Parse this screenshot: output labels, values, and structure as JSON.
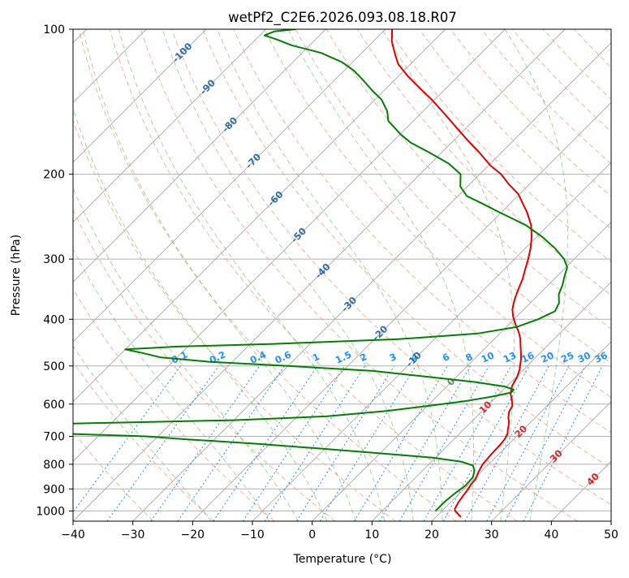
{
  "chart_data": {
    "type": "skew-t",
    "title": "wetPf2_C2E6.2026.093.08.18.R07",
    "xlabel": "Temperature (°C)",
    "ylabel": "Pressure (hPa)",
    "xlim": [
      -40,
      50
    ],
    "ylim": [
      1050,
      100
    ],
    "y_scale": "log",
    "grid": true,
    "x_ticks": [
      -40,
      -30,
      -20,
      -10,
      0,
      10,
      20,
      30,
      40,
      50
    ],
    "y_ticks": [
      100,
      200,
      300,
      400,
      500,
      600,
      700,
      800,
      900,
      1000
    ],
    "skew_angle_deg": 45,
    "series": [
      {
        "key": "temperature",
        "color": "#e00000",
        "points": [
          [
            1030,
            24.2
          ],
          [
            1010,
            22.9
          ],
          [
            1000,
            22.2
          ],
          [
            990,
            21.8
          ],
          [
            960,
            21.3
          ],
          [
            930,
            21.0
          ],
          [
            900,
            20.7
          ],
          [
            880,
            20.4
          ],
          [
            860,
            20.3
          ],
          [
            830,
            19.6
          ],
          [
            800,
            19.0
          ],
          [
            770,
            18.8
          ],
          [
            740,
            18.7
          ],
          [
            720,
            18.6
          ],
          [
            705,
            18.4
          ],
          [
            690,
            18.0
          ],
          [
            678,
            17.4
          ],
          [
            668,
            17.0
          ],
          [
            655,
            16.4
          ],
          [
            640,
            15.5
          ],
          [
            622,
            14.6
          ],
          [
            605,
            14.2
          ],
          [
            588,
            13.1
          ],
          [
            570,
            11.8
          ],
          [
            550,
            10.8
          ],
          [
            528,
            10.2
          ],
          [
            508,
            9.3
          ],
          [
            485,
            7.9
          ],
          [
            470,
            6.8
          ],
          [
            455,
            5.6
          ],
          [
            440,
            4.4
          ],
          [
            425,
            2.9
          ],
          [
            410,
            1.1
          ],
          [
            395,
            -0.6
          ],
          [
            382,
            -1.9
          ],
          [
            370,
            -2.8
          ],
          [
            358,
            -3.6
          ],
          [
            345,
            -4.4
          ],
          [
            330,
            -5.3
          ],
          [
            315,
            -6.5
          ],
          [
            300,
            -7.7
          ],
          [
            285,
            -9.1
          ],
          [
            270,
            -10.8
          ],
          [
            255,
            -12.9
          ],
          [
            240,
            -15.7
          ],
          [
            230,
            -17.9
          ],
          [
            220,
            -20.2
          ],
          [
            210,
            -23.4
          ],
          [
            200,
            -26.4
          ],
          [
            192,
            -29.6
          ],
          [
            180,
            -33.8
          ],
          [
            170,
            -37.7
          ],
          [
            160,
            -41.7
          ],
          [
            150,
            -45.9
          ],
          [
            140,
            -50.5
          ],
          [
            132,
            -54.7
          ],
          [
            125,
            -58.5
          ],
          [
            118,
            -62.1
          ],
          [
            112,
            -64.5
          ],
          [
            106,
            -66.9
          ],
          [
            100,
            -68.9
          ]
        ]
      },
      {
        "key": "dewpoint",
        "color": "#008000",
        "points": [
          [
            1000,
            18.9
          ],
          [
            960,
            18.9
          ],
          [
            920,
            19.2
          ],
          [
            885,
            19.7
          ],
          [
            850,
            19.5
          ],
          [
            825,
            18.7
          ],
          [
            805,
            17.6
          ],
          [
            790,
            15.0
          ],
          [
            775,
            9.5
          ],
          [
            760,
            0.6
          ],
          [
            740,
            -12.2
          ],
          [
            725,
            -22.5
          ],
          [
            710,
            -34.6
          ],
          [
            700,
            -42.0
          ],
          [
            690,
            -58.0
          ],
          [
            680,
            -80.0
          ],
          [
            660,
            -60.0
          ],
          [
            648,
            -30.0
          ],
          [
            636,
            -15.0
          ],
          [
            620,
            -6.0
          ],
          [
            604,
            0.6
          ],
          [
            592,
            5.4
          ],
          [
            580,
            9.0
          ],
          [
            568,
            11.8
          ],
          [
            560,
            11.7
          ],
          [
            552,
            9.8
          ],
          [
            540,
            4.0
          ],
          [
            528,
            -4.0
          ],
          [
            512,
            -15.0
          ],
          [
            500,
            -30.0
          ],
          [
            490,
            -44.0
          ],
          [
            480,
            -52.7
          ],
          [
            470,
            -56.5
          ],
          [
            462,
            -60.0
          ],
          [
            456,
            -52.0
          ],
          [
            450,
            -36.0
          ],
          [
            440,
            -16.0
          ],
          [
            428,
            -3.6
          ],
          [
            415,
            1.7
          ],
          [
            400,
            4.0
          ],
          [
            385,
            5.5
          ],
          [
            370,
            4.8
          ],
          [
            355,
            3.3
          ],
          [
            340,
            2.4
          ],
          [
            325,
            1.2
          ],
          [
            312,
            0.2
          ],
          [
            300,
            -1.7
          ],
          [
            285,
            -5.0
          ],
          [
            270,
            -9.0
          ],
          [
            255,
            -13.8
          ],
          [
            240,
            -20.3
          ],
          [
            230,
            -24.7
          ],
          [
            222,
            -28.5
          ],
          [
            212,
            -31.2
          ],
          [
            200,
            -33.2
          ],
          [
            190,
            -37.0
          ],
          [
            180,
            -42.2
          ],
          [
            172,
            -46.8
          ],
          [
            165,
            -50.0
          ],
          [
            155,
            -54.2
          ],
          [
            148,
            -56.0
          ],
          [
            140,
            -58.9
          ],
          [
            134,
            -62.0
          ],
          [
            128,
            -65.0
          ],
          [
            122,
            -68.3
          ],
          [
            117,
            -71.8
          ],
          [
            112,
            -76.8
          ],
          [
            108,
            -83.0
          ],
          [
            105,
            -86.5
          ],
          [
            103,
            -89.2
          ],
          [
            101,
            -88.2
          ],
          [
            100,
            -85.0
          ]
        ]
      }
    ],
    "dry_adiabats": {
      "color": "#f4a582",
      "theta_c": [
        -30,
        -20,
        -10,
        0,
        10,
        20,
        30,
        40,
        50,
        60,
        70,
        80,
        90,
        100,
        110,
        120,
        130,
        140,
        150,
        160,
        170,
        180,
        190,
        200,
        210,
        220,
        230,
        240,
        250,
        260,
        270,
        280,
        290,
        300,
        310,
        320,
        330,
        340,
        350,
        360,
        370,
        380,
        390,
        400
      ]
    },
    "moist_adiabats": {
      "color": "#66bb66",
      "theta_w_c": [
        -20,
        -10,
        -5,
        0,
        5,
        10,
        15,
        20,
        25,
        30,
        35
      ]
    },
    "mixing_ratio_lines": {
      "color": "#1e90ff",
      "values": [
        0.1,
        0.2,
        0.4,
        0.6,
        1,
        1.5,
        2,
        3,
        4,
        6,
        8,
        10,
        13,
        16,
        20,
        25,
        30,
        36
      ],
      "labels": [
        "0.1",
        "0.2",
        "0.4",
        "0.6",
        "1",
        "1.5",
        "2",
        "3",
        "4",
        "6",
        "8",
        "10",
        "13",
        "16",
        "20",
        "25",
        "30",
        "36"
      ]
    },
    "isotherm_labels": {
      "cold_color": "#2b6cb0",
      "zero_color": "#777777",
      "warm_color": "#d62728",
      "items": [
        {
          "text": "-100",
          "t": -100,
          "p": 112
        },
        {
          "text": "-90",
          "t": -90,
          "p": 132
        },
        {
          "text": "-80",
          "t": -80,
          "p": 158
        },
        {
          "text": "-70",
          "t": -70,
          "p": 188
        },
        {
          "text": "-60",
          "t": -60,
          "p": 225
        },
        {
          "text": "-50",
          "t": -50,
          "p": 268
        },
        {
          "text": "-40",
          "t": -40,
          "p": 318
        },
        {
          "text": "-30",
          "t": -30,
          "p": 373
        },
        {
          "text": "-20",
          "t": -20,
          "p": 428
        },
        {
          "text": "-10",
          "t": -10,
          "p": 485
        },
        {
          "text": "0",
          "t": 0,
          "p": 540
        },
        {
          "text": "10",
          "t": 10,
          "p": 610
        },
        {
          "text": "20",
          "t": 20,
          "p": 685
        },
        {
          "text": "30",
          "t": 30,
          "p": 770
        },
        {
          "text": "40",
          "t": 40,
          "p": 860
        }
      ]
    }
  }
}
